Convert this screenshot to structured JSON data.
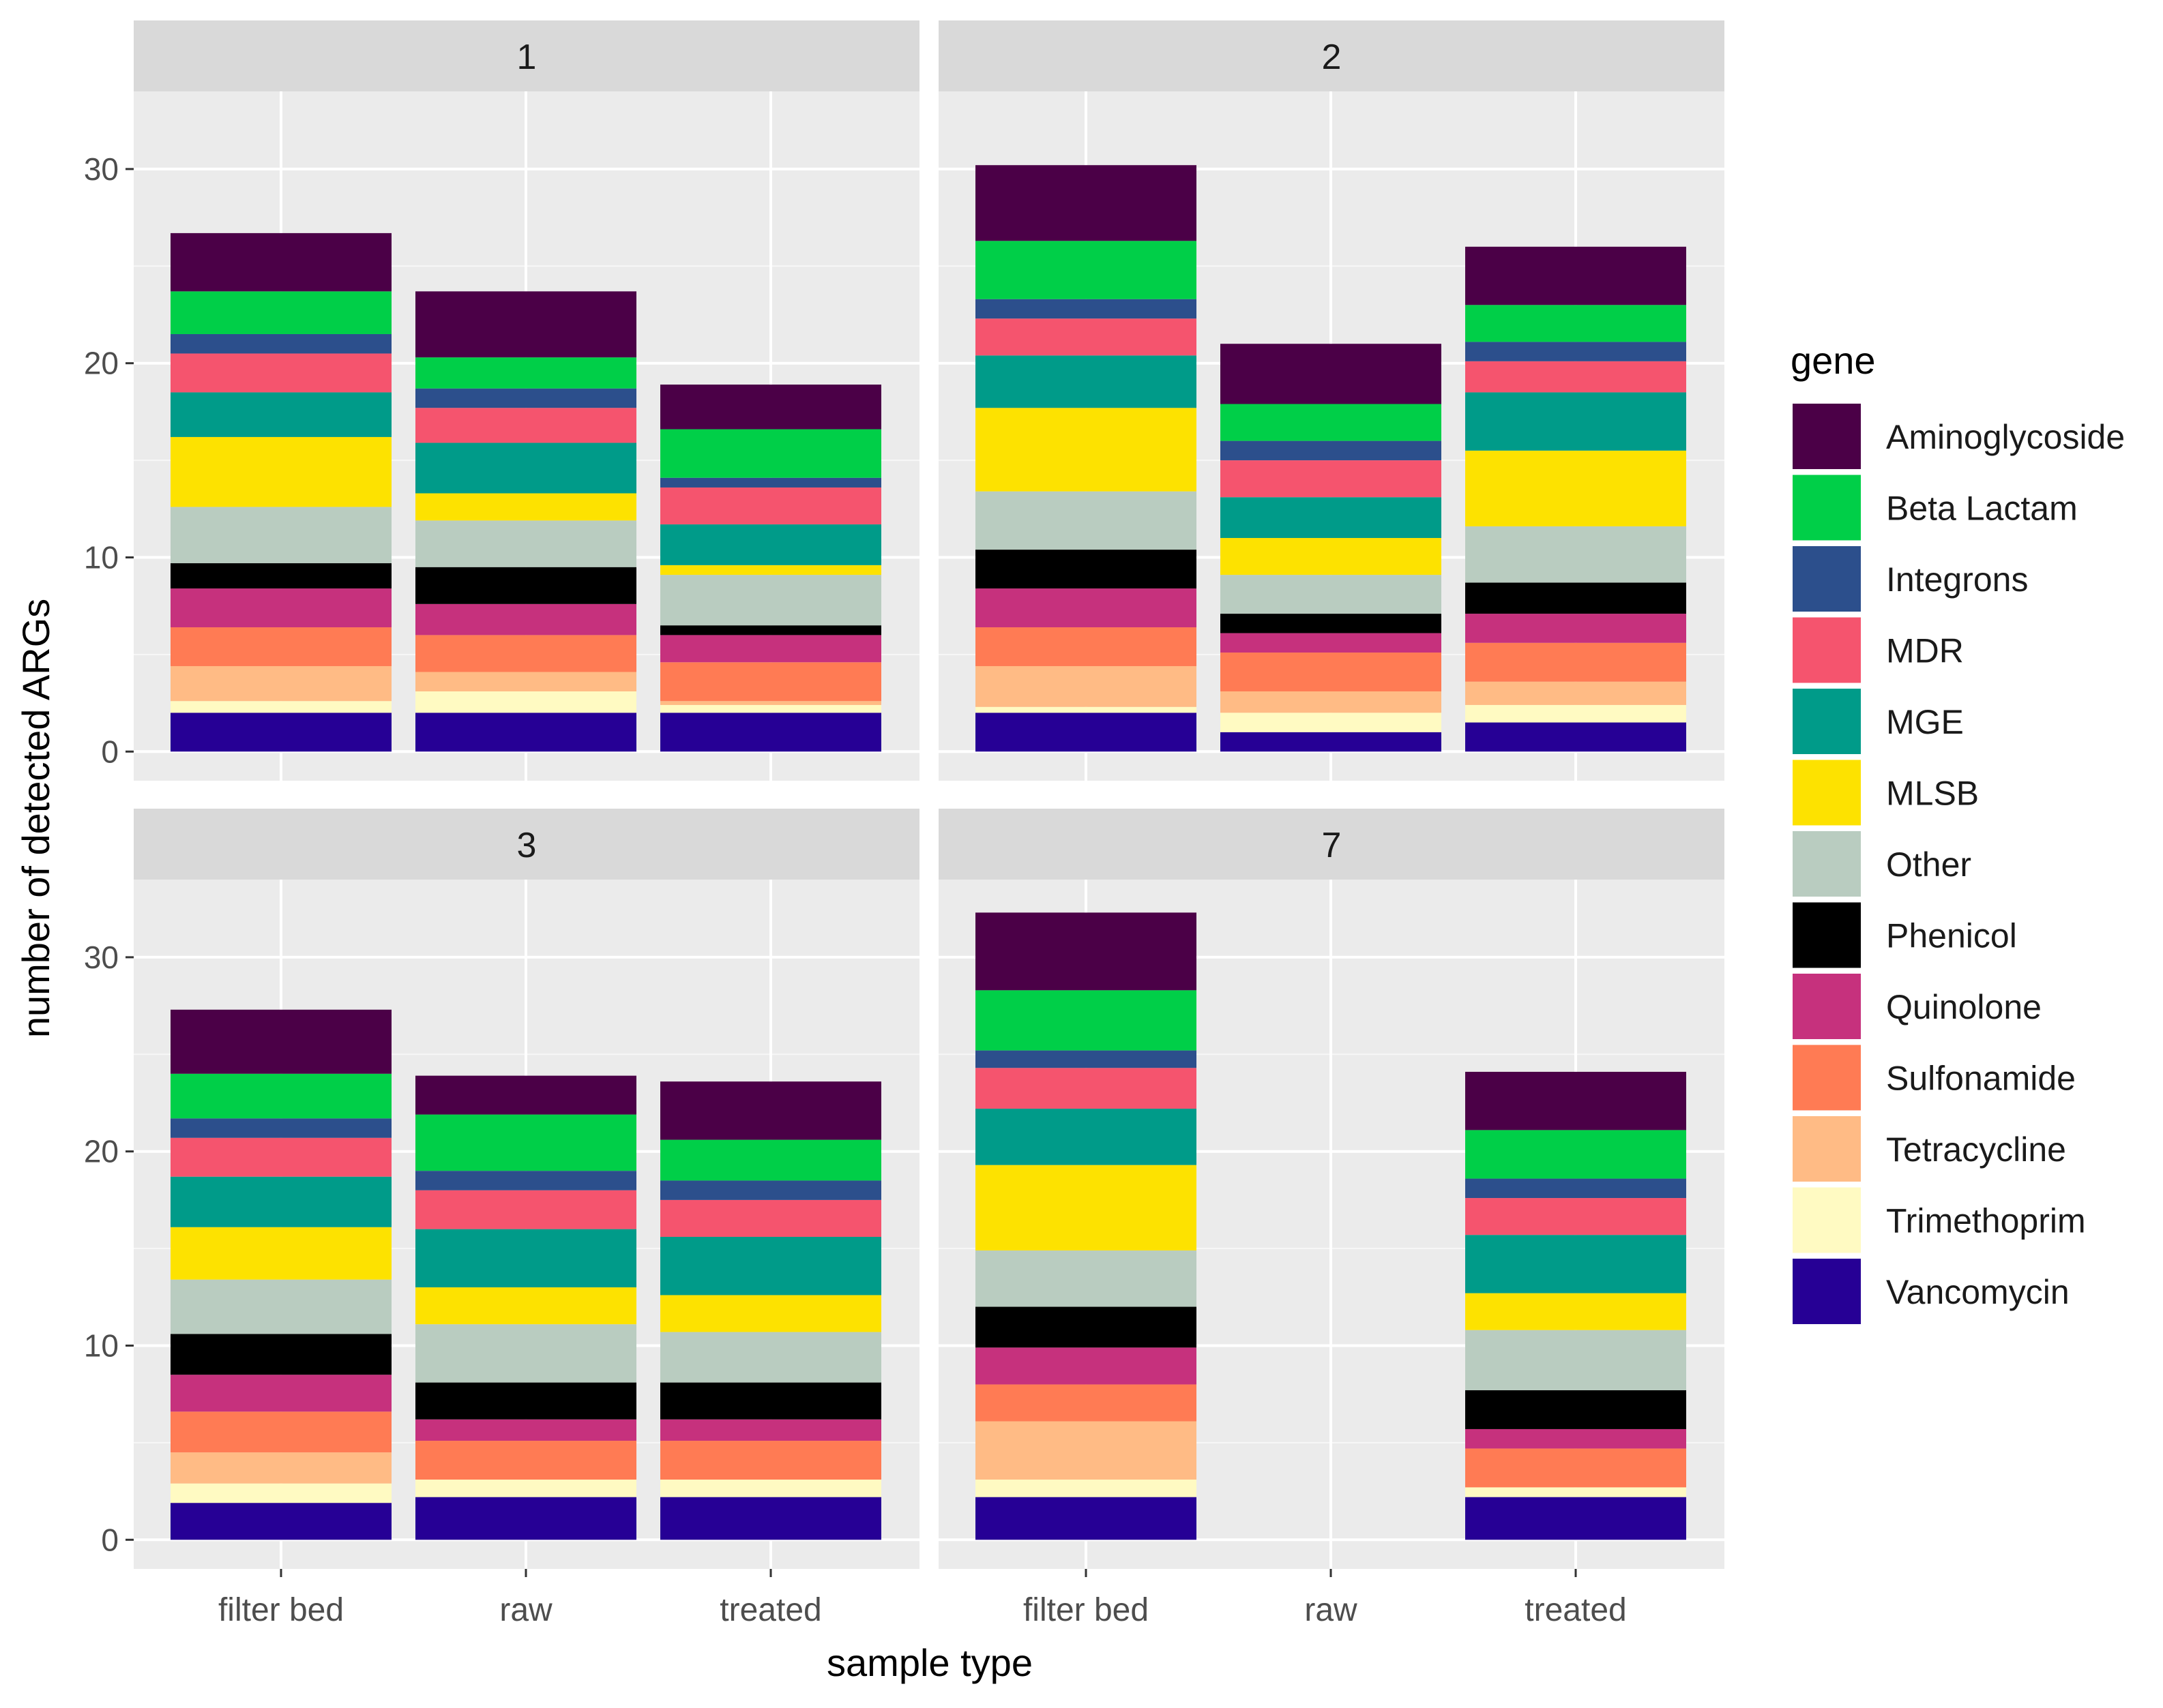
{
  "chart_data": {
    "type": "bar",
    "stacked": true,
    "xlabel": "sample type",
    "ylabel": "number of detected ARGs",
    "categories": [
      "filter bed",
      "raw",
      "treated"
    ],
    "ylim": [
      -1.5,
      34.0
    ],
    "yticks": [
      0,
      10,
      20,
      30
    ],
    "legend": {
      "title": "gene",
      "position": "right",
      "entries": [
        {
          "name": "Aminoglycoside",
          "color": "#4B0047"
        },
        {
          "name": "Beta Lactam",
          "color": "#00CF48"
        },
        {
          "name": "Integrons",
          "color": "#2C4F8C"
        },
        {
          "name": "MDR",
          "color": "#F5546E"
        },
        {
          "name": "MGE",
          "color": "#009B89"
        },
        {
          "name": "MLSB",
          "color": "#FDE200"
        },
        {
          "name": "Other",
          "color": "#B9CCC0"
        },
        {
          "name": "Phenicol",
          "color": "#000000"
        },
        {
          "name": "Quinolone",
          "color": "#C6317D"
        },
        {
          "name": "Sulfonamide",
          "color": "#FF7B54"
        },
        {
          "name": "Tetracycline",
          "color": "#FFBB85"
        },
        {
          "name": "Trimethoprim",
          "color": "#FFFAC2"
        },
        {
          "name": "Vancomycin",
          "color": "#260095"
        }
      ]
    },
    "series_order": [
      "Vancomycin",
      "Trimethoprim",
      "Tetracycline",
      "Sulfonamide",
      "Quinolone",
      "Phenicol",
      "Other",
      "MLSB",
      "MGE",
      "MDR",
      "Integrons",
      "Beta Lactam",
      "Aminoglycoside"
    ],
    "panels": [
      {
        "label": "1",
        "bars": [
          {
            "category": "filter bed",
            "values": [
              2,
              0.6,
              1.8,
              2,
              2,
              1.3,
              2.9,
              3.6,
              2.3,
              2,
              1,
              2.2,
              3
            ]
          },
          {
            "category": "raw",
            "values": [
              2,
              1.1,
              1,
              1.9,
              1.6,
              1.9,
              2.4,
              1.4,
              2.6,
              1.8,
              1,
              1.6,
              3.4
            ]
          },
          {
            "category": "treated",
            "values": [
              2,
              0.4,
              0.2,
              2,
              1.4,
              0.5,
              2.6,
              0.5,
              2.1,
              1.9,
              0.5,
              2.5,
              2.3
            ]
          }
        ]
      },
      {
        "label": "2",
        "bars": [
          {
            "category": "filter bed",
            "values": [
              2,
              0.3,
              2.1,
              2,
              2,
              2,
              3,
              4.3,
              2.7,
              1.9,
              1,
              3,
              3.9
            ]
          },
          {
            "category": "raw",
            "values": [
              1,
              1,
              1.1,
              2,
              1,
              1,
              2,
              1.9,
              2.1,
              1.9,
              1,
              1.9,
              3.1
            ]
          },
          {
            "category": "treated",
            "values": [
              1.5,
              0.9,
              1.2,
              2,
              1.5,
              1.6,
              2.9,
              3.9,
              3,
              1.6,
              1,
              1.9,
              3
            ]
          }
        ]
      },
      {
        "label": "3",
        "bars": [
          {
            "category": "filter bed",
            "values": [
              1.9,
              1,
              1.6,
              2.1,
              1.9,
              2.1,
              2.8,
              2.7,
              2.6,
              2,
              1,
              2.3,
              3.3
            ]
          },
          {
            "category": "raw",
            "values": [
              2.2,
              0.9,
              0,
              2,
              1.1,
              1.9,
              3,
              1.9,
              3,
              2,
              1,
              2.9,
              2
            ]
          },
          {
            "category": "treated",
            "values": [
              2.2,
              0.9,
              0,
              2,
              1.1,
              1.9,
              2.6,
              1.9,
              3,
              1.9,
              1,
              2.1,
              3
            ]
          }
        ]
      },
      {
        "label": "7",
        "bars": [
          {
            "category": "filter bed",
            "values": [
              2.2,
              0.9,
              3,
              1.9,
              1.9,
              2.1,
              2.9,
              4.4,
              2.9,
              2.1,
              0.9,
              3.1,
              4
            ]
          },
          {
            "category": "treated",
            "values": [
              2.2,
              0.5,
              0,
              2,
              1,
              2,
              3.1,
              1.9,
              3,
              1.9,
              1,
              2.5,
              3
            ]
          }
        ]
      }
    ]
  }
}
